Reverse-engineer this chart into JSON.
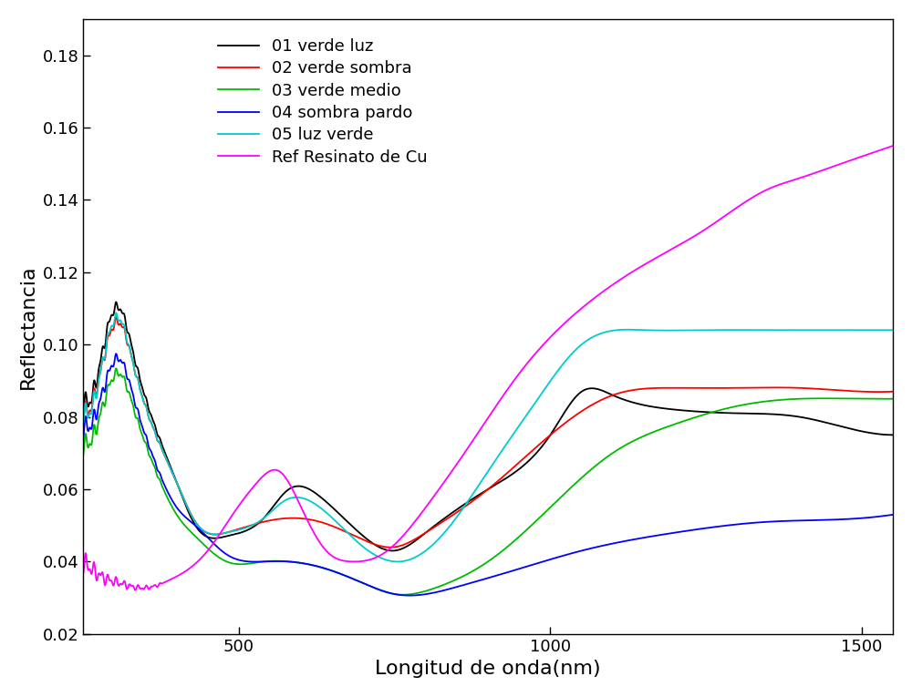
{
  "title": "",
  "xlabel": "Longitud de onda(nm)",
  "ylabel": "Reflectancia",
  "xlim": [
    250,
    1550
  ],
  "ylim": [
    0.02,
    0.19
  ],
  "xticks": [
    500,
    1000,
    1500
  ],
  "yticks": [
    0.02,
    0.04,
    0.06,
    0.08,
    0.1,
    0.12,
    0.14,
    0.16,
    0.18
  ],
  "background_color": "#ffffff",
  "series": [
    {
      "label": "01 verde luz",
      "color": "#000000",
      "lw": 1.3
    },
    {
      "label": "02 verde sombra",
      "color": "#ff0000",
      "lw": 1.3
    },
    {
      "label": "03 verde medio",
      "color": "#00bb00",
      "lw": 1.3
    },
    {
      "label": "04 sombra pardo",
      "color": "#0000ff",
      "lw": 1.3
    },
    {
      "label": "05 luz verde",
      "color": "#00cccc",
      "lw": 1.3
    },
    {
      "label": "Ref Resinato de Cu",
      "color": "#ff00ff",
      "lw": 1.3
    }
  ],
  "figsize": [
    10.0,
    7.65
  ],
  "dpi": 100
}
